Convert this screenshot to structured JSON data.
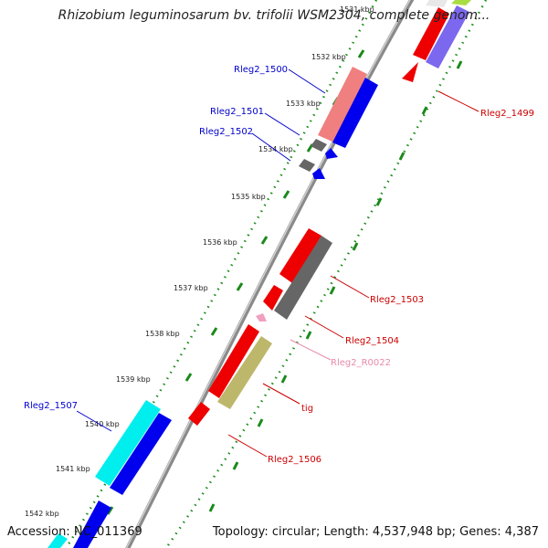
{
  "title": "Rhizobium leguminosarum bv. trifolii WSM2304, complete genom...",
  "footer": {
    "accession": "Accession: NC_011369",
    "summary": "Topology: circular; Length: 4,537,948 bp; Genes: 4,387"
  },
  "kbp_labels": [
    "1531 kbp",
    "1532 kbp",
    "1533 kbp",
    "1534 kbp",
    "1535 kbp",
    "1536 kbp",
    "1537 kbp",
    "1538 kbp",
    "1539 kbp",
    "1540 kbp",
    "1541 kbp",
    "1542 kbp"
  ],
  "gene_labels": {
    "rleg2_1500": "Rleg2_1500",
    "rleg2_1501": "Rleg2_1501",
    "rleg2_1502": "Rleg2_1502",
    "rleg2_1499": "Rleg2_1499",
    "rleg2_1503": "Rleg2_1503",
    "rleg2_1504": "Rleg2_1504",
    "rleg2_r0022": "Rleg2_R0022",
    "tig": "tig",
    "rleg2_1506": "Rleg2_1506",
    "rleg2_1507": "Rleg2_1507"
  },
  "colors": {
    "forward_label": "#0000cc",
    "reverse_label": "#cc0000",
    "rrna_label": "#e88aa8",
    "backbone": "#8a8a8a",
    "tick_green": "#1a8a1a"
  }
}
